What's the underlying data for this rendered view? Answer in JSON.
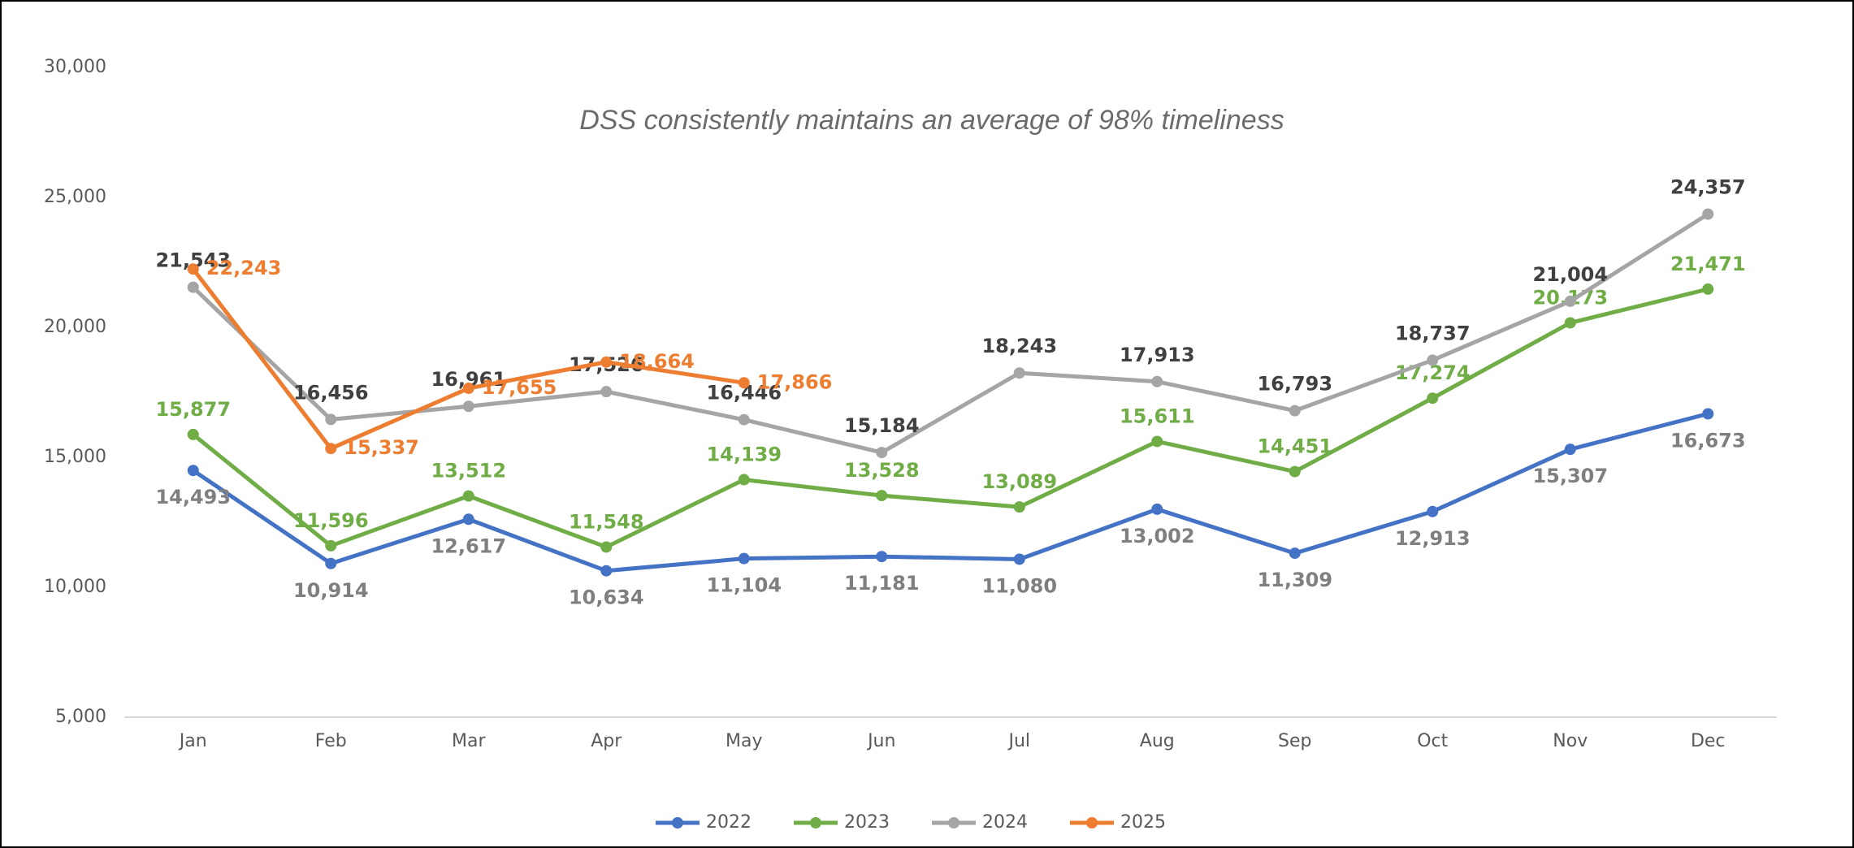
{
  "chart_data": {
    "type": "line",
    "title": "DSS consistently maintains an average of 98% timeliness",
    "categories": [
      "Jan",
      "Feb",
      "Mar",
      "Apr",
      "May",
      "Jun",
      "Jul",
      "Aug",
      "Sep",
      "Oct",
      "Nov",
      "Dec"
    ],
    "series": [
      {
        "name": "2022",
        "color": "#4472c4",
        "values": [
          14493,
          10914,
          12617,
          10634,
          11104,
          11181,
          11080,
          13002,
          11309,
          12913,
          15307,
          16673
        ],
        "value_labels": [
          "14,493",
          "10,914",
          "12,617",
          "10,634",
          "11,104",
          "11,181",
          "11,080",
          "13,002",
          "11,309",
          "12,913",
          "15,307",
          "16,673"
        ]
      },
      {
        "name": "2023",
        "color": "#70ad47",
        "values": [
          15877,
          11596,
          13512,
          11548,
          14139,
          13528,
          13089,
          15611,
          14451,
          17274,
          20173,
          21471
        ],
        "value_labels": [
          "15,877",
          "11,596",
          "13,512",
          "11,548",
          "14,139",
          "13,528",
          "13,089",
          "15,611",
          "14,451",
          "17,274",
          "20,173",
          "21,471"
        ]
      },
      {
        "name": "2024",
        "color": "#a5a5a5",
        "values": [
          21543,
          16456,
          16961,
          17526,
          16446,
          15184,
          18243,
          17913,
          16793,
          18737,
          21004,
          24357
        ],
        "value_labels": [
          "21,543",
          "16,456",
          "16,961",
          "17,526",
          "16,446",
          "15,184",
          "18,243",
          "17,913",
          "16,793",
          "18,737",
          "21,004",
          "24,357"
        ]
      },
      {
        "name": "2025",
        "color": "#ed7d31",
        "values": [
          22243,
          15337,
          17655,
          18664,
          17866,
          null,
          null,
          null,
          null,
          null,
          null,
          null
        ],
        "value_labels": [
          "22,243",
          "15,337",
          "17,655",
          "18,664",
          "17,866",
          null,
          null,
          null,
          null,
          null,
          null,
          null
        ]
      }
    ],
    "ylim": [
      5000,
      30000
    ],
    "yticks": [
      {
        "value": 5000,
        "label": "5,000"
      },
      {
        "value": 10000,
        "label": "10,000"
      },
      {
        "value": 15000,
        "label": "15,000"
      },
      {
        "value": 20000,
        "label": "20,000"
      },
      {
        "value": 25000,
        "label": "25,000"
      },
      {
        "value": 30000,
        "label": "30,000"
      }
    ],
    "legend": "bottom"
  }
}
